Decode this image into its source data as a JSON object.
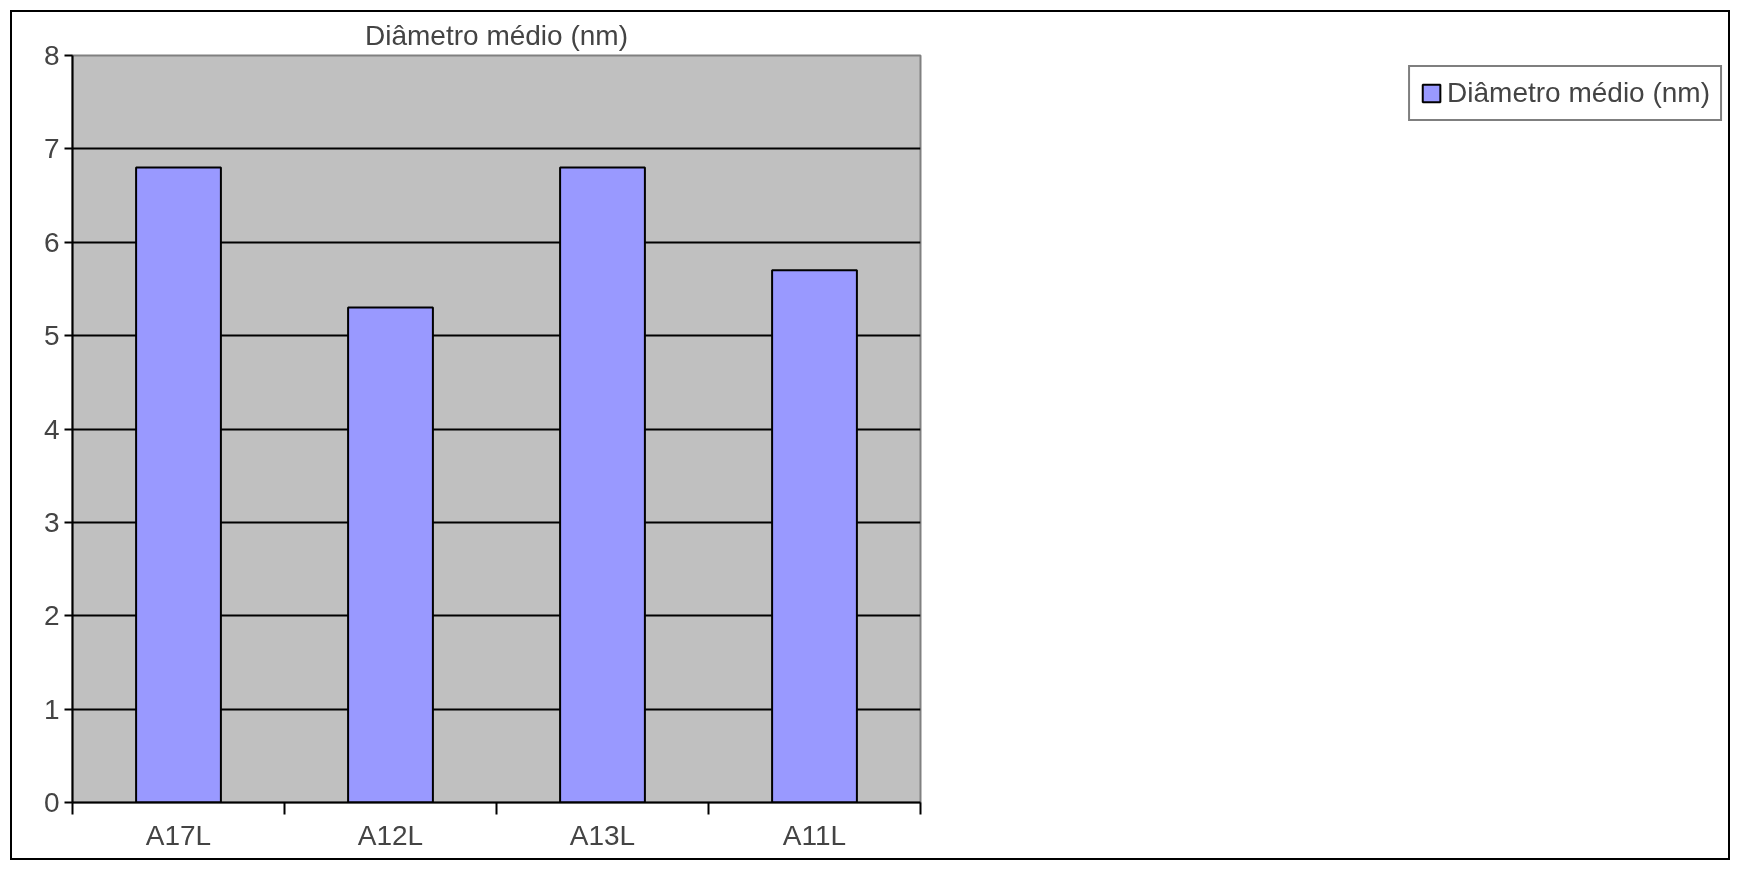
{
  "chart_data": {
    "type": "bar",
    "title": "Diâmetro médio (nm)",
    "categories": [
      "A17L",
      "A12L",
      "A13L",
      "A11L"
    ],
    "series": [
      {
        "name": "Diâmetro médio (nm)",
        "color": "#9999ff",
        "values": [
          6.8,
          5.3,
          6.8,
          5.7
        ]
      }
    ],
    "ylim": [
      0,
      8
    ],
    "yticks": [
      0,
      1,
      2,
      3,
      4,
      5,
      6,
      7,
      8
    ],
    "grid": "y",
    "legend": "right"
  }
}
